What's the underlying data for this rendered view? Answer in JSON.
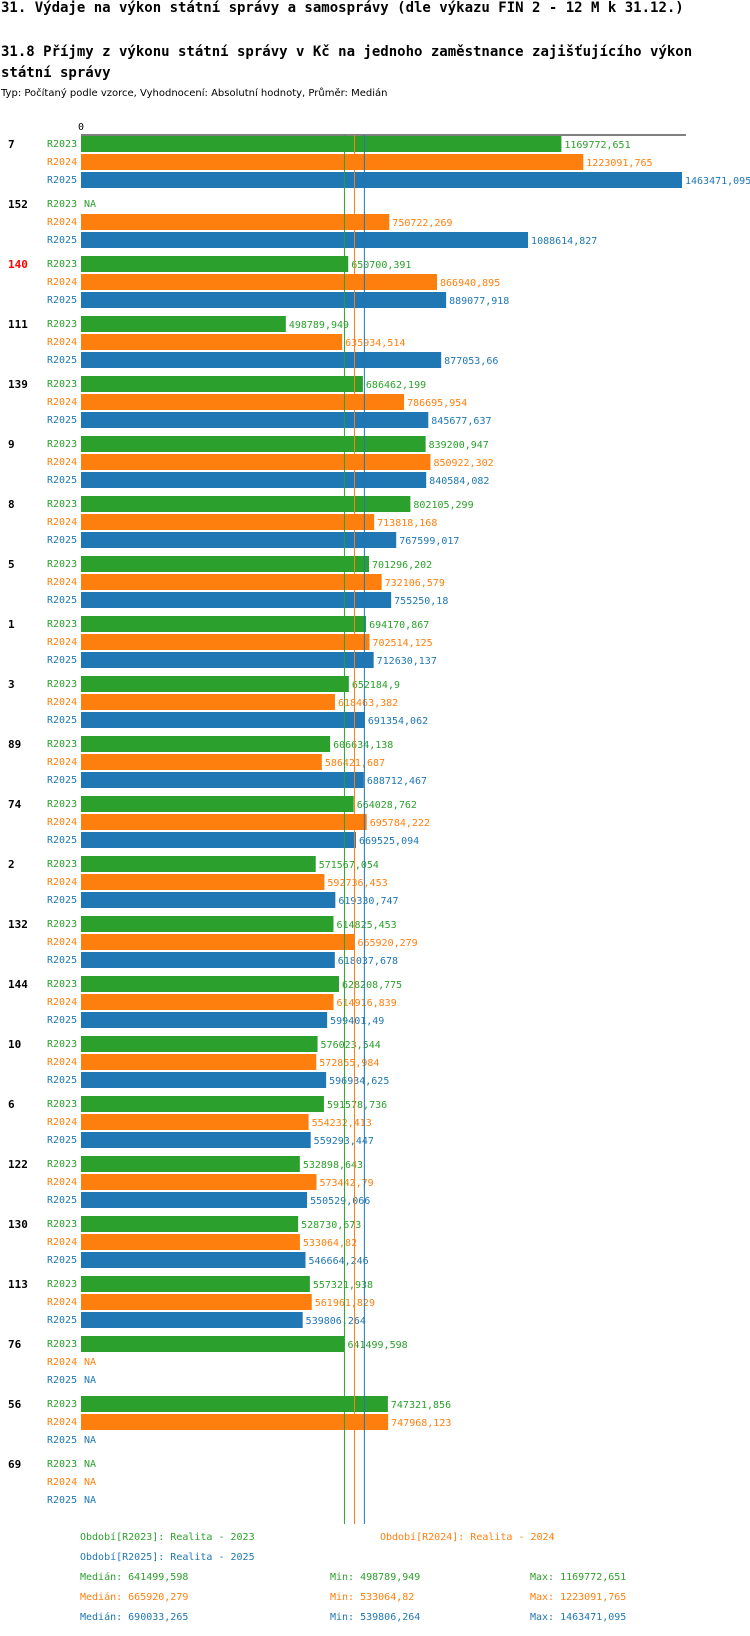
{
  "page_title": "31. Výdaje na výkon státní správy a samosprávy (dle výkazu FIN 2 - 12 M k 31.12.)",
  "chart_title": "31.8 Příjmy z výkonu státní správy v Kč na jednoho zaměstnance zajišťujícího výkon státní správy",
  "subtitle": "Typ: Počítaný podle vzorce, Vyhodnocení: Absolutní hodnoty, Průměr: Medián",
  "colors": {
    "R2023": "#2ca02c",
    "R2024": "#ff7f0e",
    "R2025": "#1f77b4",
    "highlight": "#ff0000"
  },
  "chart_data": {
    "type": "bar",
    "orientation": "horizontal",
    "axis_zero_label": "0",
    "xlim": [
      0,
      1463471.095
    ],
    "series_names": [
      "R2023",
      "R2024",
      "R2025"
    ],
    "na_label": "NA",
    "highlighted_category": "140",
    "groups": [
      {
        "label": "7",
        "values": [
          "1169772,651",
          "1223091,765",
          "1463471,095"
        ]
      },
      {
        "label": "152",
        "values": [
          null,
          "750722,269",
          "1088614,827"
        ]
      },
      {
        "label": "140",
        "values": [
          "650700,391",
          "866940,895",
          "889077,918"
        ]
      },
      {
        "label": "111",
        "values": [
          "498789,949",
          "635934,514",
          "877053,66"
        ]
      },
      {
        "label": "139",
        "values": [
          "686462,199",
          "786695,954",
          "845677,637"
        ]
      },
      {
        "label": "9",
        "values": [
          "839200,947",
          "850922,302",
          "840584,082"
        ]
      },
      {
        "label": "8",
        "values": [
          "802105,299",
          "713818,168",
          "767599,017"
        ]
      },
      {
        "label": "5",
        "values": [
          "701296,202",
          "732106,579",
          "755250,18"
        ]
      },
      {
        "label": "1",
        "values": [
          "694170,867",
          "702514,125",
          "712630,137"
        ]
      },
      {
        "label": "3",
        "values": [
          "652184,9",
          "618463,382",
          "691354,062"
        ]
      },
      {
        "label": "89",
        "values": [
          "606634,138",
          "586421,687",
          "688712,467"
        ]
      },
      {
        "label": "74",
        "values": [
          "664028,762",
          "695784,222",
          "669525,094"
        ]
      },
      {
        "label": "2",
        "values": [
          "571567,054",
          "592736,453",
          "619330,747"
        ]
      },
      {
        "label": "132",
        "values": [
          "614825,453",
          "665920,279",
          "618037,678"
        ]
      },
      {
        "label": "144",
        "values": [
          "628208,775",
          "614916,839",
          "599401,49"
        ]
      },
      {
        "label": "10",
        "values": [
          "576023,544",
          "572855,984",
          "596934,625"
        ]
      },
      {
        "label": "6",
        "values": [
          "591578,736",
          "554232,413",
          "559293,447"
        ]
      },
      {
        "label": "122",
        "values": [
          "532898,643",
          "573442,79",
          "550529,066"
        ]
      },
      {
        "label": "130",
        "values": [
          "528730,673",
          "533064,82",
          "546664,246"
        ]
      },
      {
        "label": "113",
        "values": [
          "557321,938",
          "561961,829",
          "539806,264"
        ]
      },
      {
        "label": "76",
        "values": [
          "641499,598",
          null,
          null
        ]
      },
      {
        "label": "56",
        "values": [
          "747321,856",
          "747968,123",
          null
        ]
      },
      {
        "label": "69",
        "values": [
          null,
          null,
          null
        ]
      }
    ],
    "median_values": [
      641499.598,
      665920.279,
      690033.265
    ],
    "legend": [
      "Období[R2023]: Realita - 2023",
      "Období[R2024]: Realita - 2024",
      "Období[R2025]: Realita - 2025"
    ],
    "stats": [
      {
        "median": "Medián: 641499,598",
        "min": "Min: 498789,949",
        "max": "Max: 1169772,651"
      },
      {
        "median": "Medián: 665920,279",
        "min": "Min: 533064,82",
        "max": "Max: 1223091,765"
      },
      {
        "median": "Medián: 690033,265",
        "min": "Min: 539806,264",
        "max": "Max: 1463471,095"
      }
    ]
  }
}
